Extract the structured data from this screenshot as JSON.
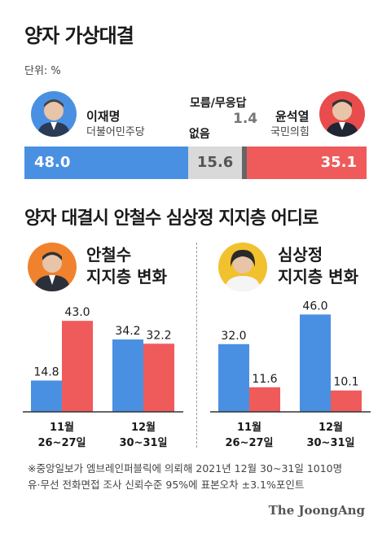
{
  "header": {
    "title": "양자 가상대결",
    "unit": "단위: %"
  },
  "matchup": {
    "left": {
      "name": "이재명",
      "party": "더불어민주당",
      "value": 48.0,
      "label": "48.0",
      "color": "#4a90e2"
    },
    "undecided": {
      "label": "없음",
      "value": 15.6,
      "value_label": "15.6",
      "color": "#d9d9d9"
    },
    "no_answer": {
      "label": "모름/무응답",
      "value": 1.4,
      "value_label": "1.4",
      "color": "#666666"
    },
    "right": {
      "name": "윤석열",
      "party": "국민의힘",
      "value": 35.1,
      "label": "35.1",
      "color": "#ef5b5b"
    }
  },
  "section2": {
    "title": "양자 대결시 안철수 심상정 지지층 어디로"
  },
  "panels": [
    {
      "title_line1": "안철수",
      "title_line2": "지지층 변화"
    },
    {
      "title_line1": "심상정",
      "title_line2": "지지층 변화"
    }
  ],
  "chart_data": [
    {
      "type": "bar",
      "title": "안철수 지지층 변화",
      "categories": [
        "11월 26~27일",
        "12월 30~31일"
      ],
      "series": [
        {
          "name": "이재명",
          "color": "#4a90e2",
          "values": [
            14.8,
            34.2
          ],
          "labels": [
            "14.8",
            "34.2"
          ]
        },
        {
          "name": "윤석열",
          "color": "#ef5b5b",
          "values": [
            43.0,
            32.2
          ],
          "labels": [
            "43.0",
            "32.2"
          ]
        }
      ],
      "tick_lines": [
        [
          "11월",
          "26~27일"
        ],
        [
          "12월",
          "30~31일"
        ]
      ]
    },
    {
      "type": "bar",
      "title": "심상정 지지층 변화",
      "categories": [
        "11월 26~27일",
        "12월 30~31일"
      ],
      "series": [
        {
          "name": "이재명",
          "color": "#4a90e2",
          "values": [
            32.0,
            46.0
          ],
          "labels": [
            "32.0",
            "46.0"
          ]
        },
        {
          "name": "윤석열",
          "color": "#ef5b5b",
          "values": [
            11.6,
            10.1
          ],
          "labels": [
            "11.6",
            "10.1"
          ]
        }
      ],
      "tick_lines": [
        [
          "11월",
          "26~27일"
        ],
        [
          "12월",
          "30~31일"
        ]
      ]
    }
  ],
  "footnote": {
    "line1": "※중앙일보가 엠브레인퍼블릭에 의뢰해 2021년 12월 30~31일 1010명",
    "line2": "유·무선 전화면접 조사 신뢰수준 95%에 표본오차 ±3.1%포인트"
  },
  "logo": "The JoongAng"
}
